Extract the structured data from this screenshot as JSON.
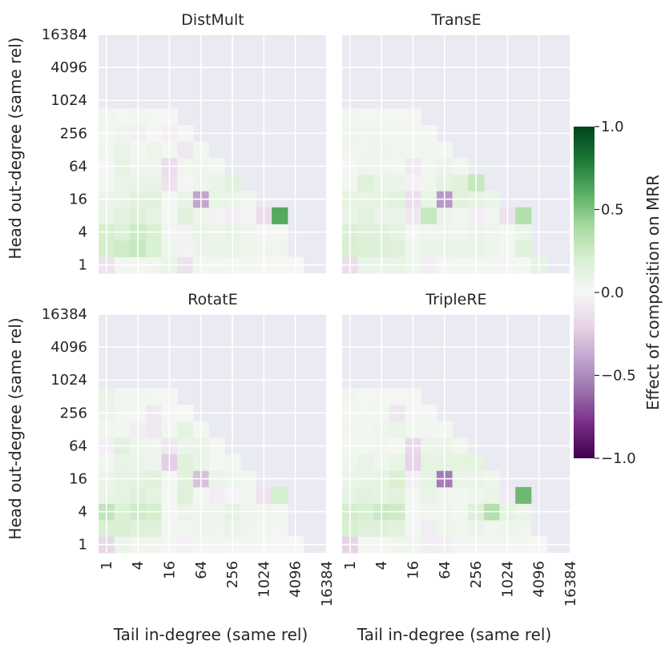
{
  "figure": {
    "xlabel": "Tail in-degree (same rel)",
    "ylabel": "Head out-degree (same rel)",
    "colorbar_label": "Effect of composition on MRR"
  },
  "chart_data": {
    "type": "heatmap",
    "axes": {
      "x_scale": "log2",
      "y_scale": "log2",
      "x_range_log2": [
        0,
        14
      ],
      "y_range_log2": [
        0,
        14
      ],
      "x_ticks": [
        {
          "value": 1,
          "label": "1"
        },
        {
          "value": 4,
          "label": "4"
        },
        {
          "value": 16,
          "label": "16"
        },
        {
          "value": 64,
          "label": "64"
        },
        {
          "value": 256,
          "label": "256"
        },
        {
          "value": 1024,
          "label": "1024"
        },
        {
          "value": 4096,
          "label": "4096"
        },
        {
          "value": 16384,
          "label": "16384"
        }
      ],
      "y_ticks": [
        {
          "value": 1,
          "label": "1"
        },
        {
          "value": 4,
          "label": "4"
        },
        {
          "value": 16,
          "label": "16"
        },
        {
          "value": 64,
          "label": "64"
        },
        {
          "value": 256,
          "label": "256"
        },
        {
          "value": 1024,
          "label": "1024"
        },
        {
          "value": 4096,
          "label": "4096"
        },
        {
          "value": 16384,
          "label": "16384"
        }
      ],
      "grid": true
    },
    "colorbar": {
      "colormap": "PRGn",
      "vmin": -1.0,
      "vmax": 1.0,
      "ticks": [
        {
          "value": 1.0,
          "label": "1.0"
        },
        {
          "value": 0.5,
          "label": "0.5"
        },
        {
          "value": 0.0,
          "label": "0.0"
        },
        {
          "value": -0.5,
          "label": "−0.5"
        },
        {
          "value": -1.0,
          "label": "−1.0"
        }
      ]
    },
    "panels": [
      {
        "title": "DistMult",
        "rows_low_to_high": [
          [
            -0.12,
            0.04,
            0.04,
            0.05,
            0.09,
            -0.12,
            0.04,
            0.04,
            0.03,
            0.02,
            0.02,
            0.01,
            0.01
          ],
          [
            0.22,
            0.24,
            0.28,
            0.2,
            0.06,
            -0.03,
            0.08,
            0.08,
            0.1,
            0.07,
            0.06,
            0.05
          ],
          [
            0.22,
            0.18,
            0.25,
            0.2,
            0.04,
            -0.04,
            0.1,
            0.07,
            0.1,
            0.06,
            0.03,
            0.02
          ],
          [
            0.1,
            0.14,
            0.18,
            0.12,
            0.03,
            0.15,
            0.06,
            -0.03,
            -0.05,
            0.02,
            -0.15,
            0.62
          ],
          [
            0.08,
            0.1,
            0.14,
            0.15,
            0.02,
            0.1,
            -0.4,
            0.1,
            0.09,
            0.05
          ],
          [
            0.04,
            0.08,
            0.1,
            0.1,
            -0.12,
            0.02,
            0.06,
            0.08,
            0.15
          ],
          [
            0.03,
            0.12,
            0.05,
            0.06,
            -0.15,
            0.05,
            0.07,
            0.04
          ],
          [
            0.05,
            0.08,
            0.04,
            0.07,
            0.04,
            -0.09,
            0.04
          ],
          [
            0.04,
            0.06,
            -0.05,
            0.02,
            -0.05,
            0.02
          ],
          [
            0.05,
            0.03,
            0.04,
            0.03,
            0.03
          ]
        ]
      },
      {
        "title": "TransE",
        "rows_low_to_high": [
          [
            -0.15,
            0.1,
            0.08,
            0.1,
            0.06,
            -0.05,
            0.04,
            0.03,
            0.04,
            0.03,
            0.03,
            0.02,
            0.12
          ],
          [
            0.2,
            0.18,
            0.18,
            0.16,
            0.06,
            0.08,
            0.1,
            0.08,
            0.1,
            0.06,
            0.04,
            0.15
          ],
          [
            0.2,
            0.16,
            0.16,
            0.12,
            0.03,
            0.05,
            0.06,
            0.05,
            0.08,
            0.06,
            0.02,
            0.08
          ],
          [
            0.1,
            0.14,
            0.08,
            0.1,
            -0.1,
            0.28,
            0.08,
            0.04,
            -0.05,
            0.04,
            -0.12,
            0.35
          ],
          [
            0.12,
            0.1,
            0.12,
            0.14,
            -0.15,
            0.1,
            -0.45,
            0.15,
            0.12,
            0.08
          ],
          [
            0.04,
            0.16,
            0.1,
            0.08,
            -0.04,
            0.05,
            0.12,
            0.15,
            0.28
          ],
          [
            0.03,
            0.06,
            0.05,
            0.04,
            -0.08,
            0.04,
            0.08,
            0.05
          ],
          [
            0.05,
            0.05,
            0.06,
            0.05,
            0.04,
            0.05,
            0.04
          ],
          [
            0.06,
            0.05,
            0.05,
            0.04,
            0.04,
            0.02
          ],
          [
            0.04,
            0.03,
            0.03,
            0.03,
            0.03
          ]
        ]
      },
      {
        "title": "RotatE",
        "rows_low_to_high": [
          [
            -0.18,
            0.08,
            0.05,
            0.05,
            0.02,
            -0.04,
            0.03,
            0.04,
            0.03,
            0.02,
            0.02,
            0.01,
            0.01
          ],
          [
            0.2,
            0.2,
            0.16,
            0.16,
            0.05,
            0.04,
            0.06,
            0.05,
            0.08,
            0.05,
            0.04,
            0.03
          ],
          [
            0.3,
            0.18,
            0.24,
            0.22,
            0.02,
            0.08,
            0.06,
            0.06,
            0.12,
            0.06,
            0.05,
            0.04
          ],
          [
            0.1,
            0.12,
            0.16,
            0.12,
            0.03,
            0.16,
            0.02,
            -0.05,
            -0.02,
            0.04,
            -0.12,
            0.22
          ],
          [
            0.08,
            0.12,
            0.12,
            0.15,
            0.02,
            0.14,
            -0.28,
            0.08,
            0.06,
            0.05
          ],
          [
            0.04,
            0.1,
            0.08,
            0.06,
            -0.22,
            0.15,
            0.1,
            0.03,
            0.04
          ],
          [
            -0.05,
            0.15,
            0.07,
            0.05,
            -0.1,
            0.08,
            0.1,
            0.02
          ],
          [
            0.05,
            0.04,
            -0.05,
            -0.08,
            0.04,
            0.12,
            0.04
          ],
          [
            0.08,
            0.04,
            0.03,
            -0.08,
            0.02,
            0.01
          ],
          [
            0.1,
            0.04,
            0.04,
            0.03,
            0.02
          ]
        ]
      },
      {
        "title": "TripleRE",
        "rows_low_to_high": [
          [
            -0.2,
            0.03,
            0.03,
            0.05,
            0.06,
            -0.06,
            -0.05,
            0.02,
            0.04,
            0.02,
            0.02,
            0.03,
            0.01
          ],
          [
            0.2,
            0.16,
            0.16,
            0.14,
            0.03,
            -0.06,
            0.06,
            0.05,
            0.08,
            0.05,
            0.06,
            0.05
          ],
          [
            0.22,
            0.2,
            0.26,
            0.24,
            0.02,
            0.05,
            0.06,
            0.04,
            0.18,
            0.35,
            0.12,
            0.08
          ],
          [
            0.12,
            0.14,
            0.12,
            0.14,
            0.04,
            0.1,
            0.05,
            0.04,
            0.06,
            0.08,
            -0.08,
            0.55
          ],
          [
            0.08,
            0.1,
            0.12,
            0.2,
            -0.05,
            0.12,
            -0.55,
            0.1,
            0.08,
            0.06
          ],
          [
            0.06,
            0.1,
            0.06,
            0.1,
            -0.2,
            0.12,
            0.12,
            0.12,
            0.12
          ],
          [
            0.04,
            0.04,
            0.05,
            0.02,
            -0.18,
            0.08,
            0.1,
            0.05
          ],
          [
            0.05,
            0.04,
            0.06,
            0.08,
            0.04,
            0.04,
            0.03
          ],
          [
            0.04,
            0.03,
            0.04,
            -0.1,
            0.02,
            0.02
          ],
          [
            0.05,
            0.03,
            0.03,
            0.02,
            0.02
          ]
        ]
      }
    ]
  }
}
